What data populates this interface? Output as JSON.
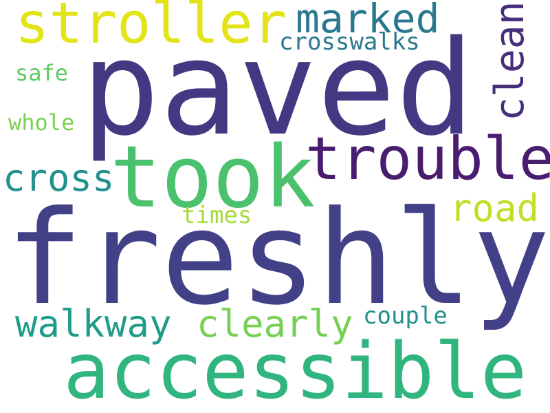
{
  "words": {
    "freshly": {
      "text": "freshly",
      "color": "#424086"
    },
    "paved": {
      "text": "paved",
      "color": "#453882"
    },
    "accessible": {
      "text": "accessible",
      "color": "#30b57e"
    },
    "took": {
      "text": "took",
      "color": "#4ac16d"
    },
    "trouble": {
      "text": "trouble",
      "color": "#481c6e"
    },
    "stroller": {
      "text": "stroller",
      "color": "#e2e418"
    },
    "marked": {
      "text": "marked",
      "color": "#2a788e"
    },
    "clean": {
      "text": "clean",
      "color": "#472e7c"
    },
    "crosswalks": {
      "text": "crosswalks",
      "color": "#2a788e"
    },
    "cross": {
      "text": "cross",
      "color": "#22908c"
    },
    "road": {
      "text": "road",
      "color": "#c0df25"
    },
    "walkway": {
      "text": "walkway",
      "color": "#1e9c89"
    },
    "clearly": {
      "text": "clearly",
      "color": "#75d054"
    },
    "couple": {
      "text": "couple",
      "color": "#22908c"
    },
    "times": {
      "text": "times",
      "color": "#a5db36"
    },
    "safe": {
      "text": "safe",
      "color": "#5ec962"
    },
    "whole": {
      "text": "whole",
      "color": "#7ad151"
    }
  }
}
